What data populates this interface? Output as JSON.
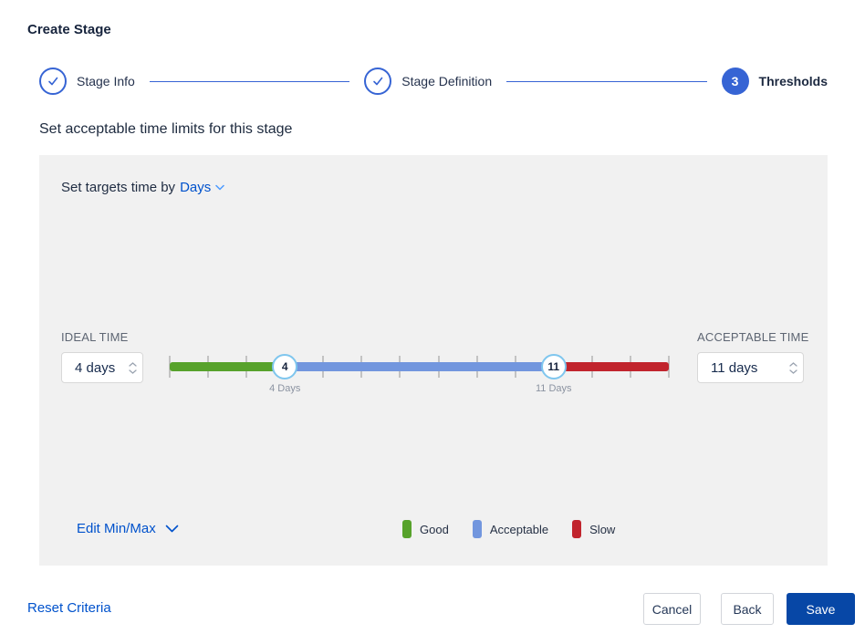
{
  "window": {
    "title": "Create Stage"
  },
  "stepper": {
    "steps": [
      {
        "label": "Stage Info",
        "state": "complete"
      },
      {
        "label": "Stage Definition",
        "state": "complete"
      },
      {
        "label": "Thresholds",
        "state": "active",
        "number": "3"
      }
    ]
  },
  "section": {
    "heading": "Set acceptable time limits for this stage"
  },
  "panel": {
    "target_time_prefix": "Set targets time by",
    "target_time_unit": "Days",
    "ideal_time": {
      "label": "IDEAL TIME",
      "value": "4 days"
    },
    "acceptable_time": {
      "label": "ACCEPTABLE TIME",
      "value": "11 days"
    },
    "slider": {
      "min": 1,
      "max": 14,
      "handles": [
        {
          "value": 4,
          "label": "4 Days"
        },
        {
          "value": 11,
          "label": "11 Days"
        }
      ],
      "segments": [
        {
          "name": "Good",
          "color": "#57a22b"
        },
        {
          "name": "Acceptable",
          "color": "#7296de"
        },
        {
          "name": "Slow",
          "color": "#c1242d"
        }
      ]
    },
    "edit_minmax_label": "Edit Min/Max",
    "legend": [
      {
        "label": "Good",
        "color": "#57a22b"
      },
      {
        "label": "Acceptable",
        "color": "#7296de"
      },
      {
        "label": "Slow",
        "color": "#c1242d"
      }
    ]
  },
  "footer": {
    "reset_label": "Reset Criteria",
    "cancel_label": "Cancel",
    "back_label": "Back",
    "save_label": "Save"
  },
  "colors": {
    "accent_blue": "#0052cc",
    "stepper_blue": "#3664d4",
    "save_button_bg": "#0747a6",
    "panel_bg": "#f1f1f1",
    "handle_ring": "#7fc6ee"
  }
}
